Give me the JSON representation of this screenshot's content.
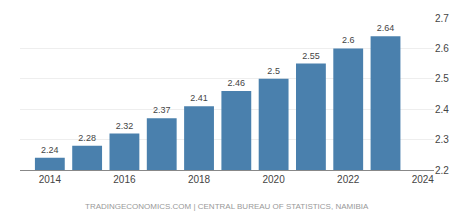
{
  "chart_data": {
    "type": "bar",
    "x": [
      2014,
      2015,
      2016,
      2017,
      2018,
      2019,
      2020,
      2021,
      2022,
      2023
    ],
    "values": [
      2.24,
      2.28,
      2.32,
      2.37,
      2.41,
      2.46,
      2.5,
      2.55,
      2.6,
      2.64
    ],
    "color": "#4a80ad",
    "xlim": [
      2013.2,
      2024.3
    ],
    "xticks": [
      2014,
      2016,
      2018,
      2020,
      2022,
      2024
    ],
    "ylim": [
      2.2,
      2.7
    ],
    "yticks": [
      2.2,
      2.3,
      2.4,
      2.5,
      2.6,
      2.7
    ],
    "grid": true,
    "data_labels": true,
    "annotations": [
      "TRADINGECONOMICS.COM | CENTRAL BUREAU OF STATISTICS, NAMIBIA"
    ]
  }
}
